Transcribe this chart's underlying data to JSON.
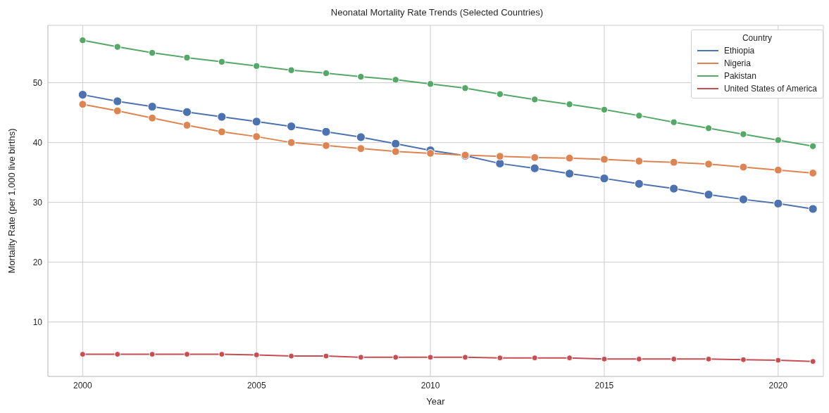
{
  "chart_data": {
    "type": "line",
    "title": "Neonatal Mortality Rate Trends (Selected Countries)",
    "xlabel": "Year",
    "ylabel": "Mortality Rate (per 1,000 live births)",
    "legend_title": "Country",
    "x": [
      2000,
      2001,
      2002,
      2003,
      2004,
      2005,
      2006,
      2007,
      2008,
      2009,
      2010,
      2011,
      2012,
      2013,
      2014,
      2015,
      2016,
      2017,
      2018,
      2019,
      2020,
      2021
    ],
    "series": [
      {
        "name": "Ethiopia",
        "color": "#4c72b0",
        "values": [
          48,
          46.9,
          46,
          45.1,
          44.3,
          43.5,
          42.7,
          41.8,
          40.9,
          39.8,
          38.7,
          37.8,
          36.5,
          35.7,
          34.8,
          34,
          33.1,
          32.3,
          31.3,
          30.5,
          29.8,
          28.9
        ]
      },
      {
        "name": "Nigeria",
        "color": "#dd8452",
        "values": [
          46.4,
          45.3,
          44.1,
          42.9,
          41.8,
          41,
          40,
          39.5,
          39,
          38.5,
          38.2,
          37.9,
          37.7,
          37.5,
          37.4,
          37.2,
          36.9,
          36.7,
          36.4,
          35.9,
          35.4,
          34.9
        ]
      },
      {
        "name": "Pakistan",
        "color": "#55a868",
        "values": [
          57.1,
          56,
          55,
          54.2,
          53.5,
          52.8,
          52.1,
          51.6,
          51,
          50.5,
          49.8,
          49.1,
          48.1,
          47.2,
          46.4,
          45.5,
          44.5,
          43.4,
          42.4,
          41.4,
          40.4,
          39.4
        ]
      },
      {
        "name": "United States of America",
        "color": "#c44e52",
        "values": [
          4.6,
          4.6,
          4.6,
          4.6,
          4.6,
          4.5,
          4.3,
          4.3,
          4.1,
          4.1,
          4.1,
          4.1,
          4,
          4,
          4,
          3.8,
          3.8,
          3.8,
          3.8,
          3.7,
          3.6,
          3.4
        ]
      }
    ],
    "xlim": [
      1999,
      2021.3
    ],
    "xticks": [
      2000,
      2005,
      2010,
      2015,
      2020
    ],
    "ylim": [
      0.9,
      59.6
    ],
    "yticks": [
      10,
      20,
      30,
      40,
      50
    ],
    "grid": true,
    "legend": "top right",
    "marker": "circle",
    "line_style": "solid"
  }
}
